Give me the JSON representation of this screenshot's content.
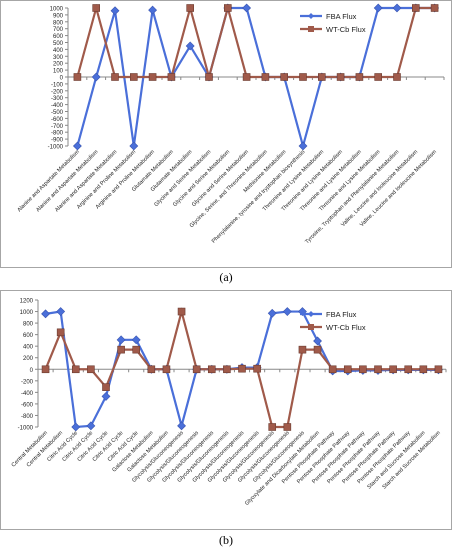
{
  "chart_data": [
    {
      "type": "line",
      "title": "",
      "xlabel": "",
      "ylabel": "",
      "ylim": [
        -1000,
        1000
      ],
      "yticks": [
        -1000,
        -900,
        -800,
        -700,
        -600,
        -500,
        -400,
        -300,
        -200,
        -100,
        0,
        100,
        200,
        300,
        400,
        500,
        600,
        700,
        800,
        900,
        1000
      ],
      "grid": false,
      "legend_position": "top-right",
      "categories": [
        "Alanine and Aspartate Metabolism",
        "Alanine and Aspartate Metabolism",
        "Alanine and Aspartate Metabolism",
        "Arginine and Proline Metabolism",
        "Arginine and Proline Metabolism",
        "Glutamate Metabolism",
        "Glutamate Metabolism",
        "Glycine and Serine Metabolism",
        "Glycine and Serine Metabolism",
        "Glycine and Serine Metabolism",
        "Glycine, Serine, and Threonine Metabolism",
        "Methionine Metabolism",
        "Phenylalanine, tyrosine and tryptophan biosynthesis",
        "Threonine and Lysine Metabolism",
        "Threonine and Lysine Metabolism",
        "Threonine and Lysine Metabolism",
        "Threonine and Lysine Metabolism",
        "Tyrosine, Tryptophan and Phenylalanine Metabolism",
        "Valine, Leucine and Isoleucine Metabolism",
        "Valine, Leucine and Isoleucine Metabolism"
      ],
      "series": [
        {
          "name": "FBA Flux",
          "color": "#4a6fd9",
          "marker": "diamond",
          "values": [
            -1000,
            0,
            960,
            -1000,
            970,
            0,
            450,
            0,
            1000,
            1000,
            0,
            0,
            -1000,
            0,
            0,
            0,
            1000,
            1000,
            1000,
            1000
          ]
        },
        {
          "name": "WT-Cb Flux",
          "color": "#a05a4a",
          "marker": "square",
          "values": [
            0,
            1000,
            0,
            0,
            0,
            0,
            1000,
            0,
            1000,
            0,
            0,
            0,
            0,
            0,
            0,
            0,
            0,
            0,
            1000,
            1000
          ]
        }
      ],
      "caption": "(a)"
    },
    {
      "type": "line",
      "title": "",
      "xlabel": "",
      "ylabel": "",
      "ylim": [
        -1000,
        1200
      ],
      "yticks": [
        -1000,
        -800,
        -600,
        -400,
        -200,
        0,
        200,
        400,
        600,
        800,
        1000,
        1200
      ],
      "grid": false,
      "legend_position": "top-right",
      "categories": [
        "Central Metabolism",
        "Central Metabolism",
        "Citric Acid Cycle",
        "Citric Acid Cycle",
        "Citric Acid Cycle",
        "Citric Acid Cycle",
        "Citric Acid Cycle",
        "Galactose Metabolism",
        "Galactose Metabolism",
        "Glycolysis/Gluconeogenesis",
        "Glycolysis/Gluconeogenesis",
        "Glycolysis/Gluconeogenesis",
        "Glycolysis/Gluconeogenesis",
        "Glycolysis/Gluconeogenesis",
        "Glycolysis/Gluconeogenesis",
        "Glycolysis/Gluconeogenesis",
        "Glycolysis/Gluconeogenesis",
        "Glycolysis/Gluconeogenesis",
        "Glyoxylate and Dicarboxylate Metabolism",
        "Pentose Phosphate Pathway",
        "Pentose Phosphate Pathway",
        "Pentose Phosphate Pathway",
        "Pentose Phosphate Pathway",
        "Pentose Phosphate Pathway",
        "Pentose Phosphate Pathway",
        "Starch and Sucrose Metabolism",
        "Starch and Sucrose Metabolism"
      ],
      "series": [
        {
          "name": "FBA Flux",
          "color": "#4a6fd9",
          "marker": "diamond",
          "values": [
            960,
            1000,
            -1000,
            -980,
            -470,
            510,
            510,
            0,
            0,
            -980,
            0,
            0,
            0,
            30,
            30,
            970,
            1000,
            1000,
            490,
            -30,
            -30,
            -20,
            -20,
            -10,
            -10,
            -10,
            -10
          ]
        },
        {
          "name": "WT-Cb Flux",
          "color": "#a05a4a",
          "marker": "square",
          "values": [
            0,
            640,
            0,
            0,
            -310,
            340,
            340,
            0,
            0,
            1000,
            0,
            0,
            0,
            10,
            10,
            -1000,
            -1000,
            340,
            340,
            0,
            0,
            0,
            0,
            0,
            0,
            0,
            0
          ]
        }
      ],
      "caption": "(b)"
    }
  ]
}
